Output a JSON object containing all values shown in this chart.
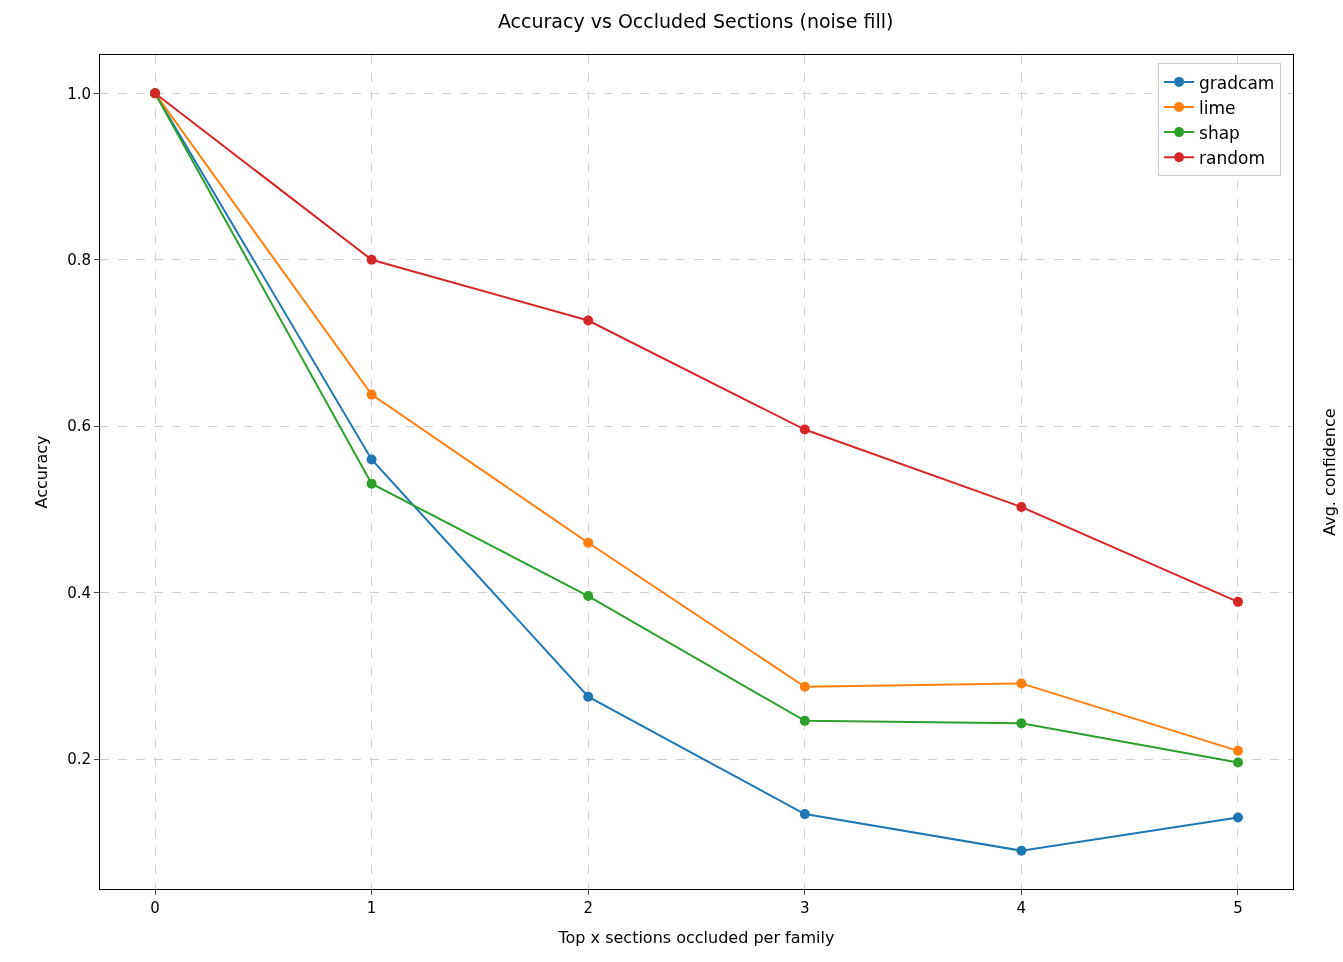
{
  "chart_data": {
    "type": "line",
    "title": "Accuracy vs Occluded Sections (noise fill)",
    "xlabel": "Top x sections occluded per family",
    "ylabel": "Accuracy",
    "y2label": "Avg. confidence",
    "x": [
      0,
      1,
      2,
      3,
      4,
      5
    ],
    "series": [
      {
        "name": "gradcam",
        "color": "#1f77b4",
        "values": [
          1.0,
          0.56,
          0.275,
          0.134,
          0.09,
          0.13
        ]
      },
      {
        "name": "lime",
        "color": "#ff7f0e",
        "values": [
          1.0,
          0.638,
          0.46,
          0.287,
          0.291,
          0.21
        ]
      },
      {
        "name": "shap",
        "color": "#2ca02c",
        "values": [
          1.0,
          0.531,
          0.396,
          0.246,
          0.243,
          0.196
        ]
      },
      {
        "name": "random",
        "color": "#d62728",
        "values": [
          1.0,
          0.8,
          0.727,
          0.596,
          0.503,
          0.389
        ]
      }
    ],
    "xlim": [
      -0.254,
      5.254
    ],
    "xticks": [
      0,
      1,
      2,
      3,
      4,
      5
    ],
    "ylim": [
      0.044,
      1.046
    ],
    "yticks": [
      {
        "value": 0.2,
        "label": "0.2"
      },
      {
        "value": 0.4,
        "label": "0.4"
      },
      {
        "value": 0.6,
        "label": "0.6"
      },
      {
        "value": 0.8,
        "label": "0.8"
      },
      {
        "value": 1.0,
        "label": "1.0"
      }
    ],
    "grid": true,
    "legend": "top right",
    "marker": "circle",
    "line_style": "solid"
  }
}
